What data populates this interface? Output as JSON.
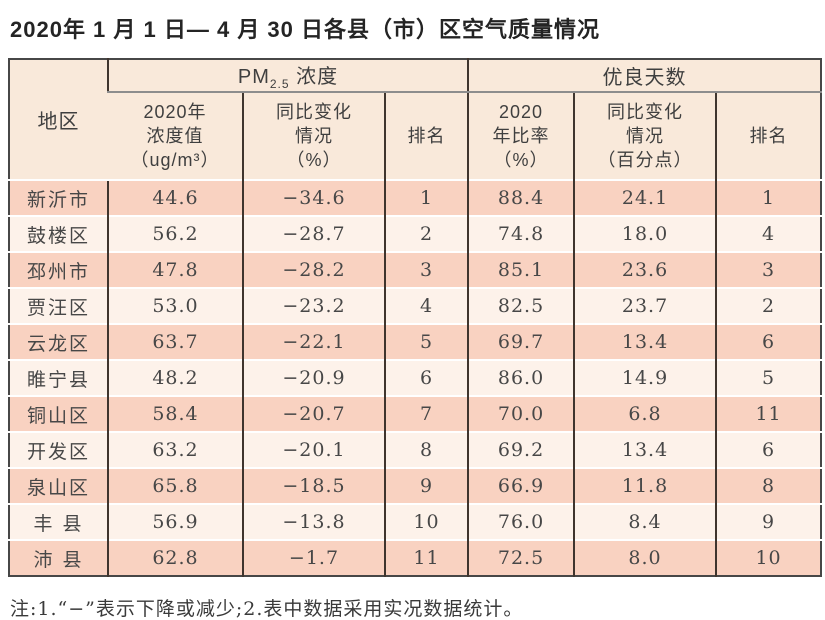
{
  "title": "2020年 1 月 1 日— 4 月 30 日各县（市）区空气质量情况",
  "note": "注:1.“−”表示下降或减少;2.表中数据采用实况数据统计。",
  "colors": {
    "header_bg": "#f9e9da",
    "row_odd_bg": "#f9d2c1",
    "row_even_bg": "#fdf2ea",
    "border_dark": "#40352e",
    "border_outer": "#474747"
  },
  "table": {
    "header": {
      "region": "地区",
      "pm_group": {
        "prefix": "PM",
        "sub": "2.5",
        "suffix": " 浓度"
      },
      "good_days_group": "优良天数",
      "sub_headers": {
        "pm_value": "2020年\n浓度值\n（ug/m³）",
        "pm_change": "同比变化\n情况\n（%）",
        "pm_rank": "排名",
        "gd_ratio": "2020\n年比率\n（%）",
        "gd_change": "同比变化\n情况\n（百分点）",
        "gd_rank": "排名"
      }
    },
    "rows": [
      [
        "新沂市",
        "44.6",
        "−34.6",
        "1",
        "88.4",
        "24.1",
        "1"
      ],
      [
        "鼓楼区",
        "56.2",
        "−28.7",
        "2",
        "74.8",
        "18.0",
        "4"
      ],
      [
        "邳州市",
        "47.8",
        "−28.2",
        "3",
        "85.1",
        "23.6",
        "3"
      ],
      [
        "贾汪区",
        "53.0",
        "−23.2",
        "4",
        "82.5",
        "23.7",
        "2"
      ],
      [
        "云龙区",
        "63.7",
        "−22.1",
        "5",
        "69.7",
        "13.4",
        "6"
      ],
      [
        "睢宁县",
        "48.2",
        "−20.9",
        "6",
        "86.0",
        "14.9",
        "5"
      ],
      [
        "铜山区",
        "58.4",
        "−20.7",
        "7",
        "70.0",
        "6.8",
        "11"
      ],
      [
        "开发区",
        "63.2",
        "−20.1",
        "8",
        "69.2",
        "13.4",
        "6"
      ],
      [
        "泉山区",
        "65.8",
        "−18.5",
        "9",
        "66.9",
        "11.8",
        "8"
      ],
      [
        "丰 县",
        "56.9",
        "−13.8",
        "10",
        "76.0",
        "8.4",
        "9"
      ],
      [
        "沛 县",
        "62.8",
        "−1.7",
        "11",
        "72.5",
        "8.0",
        "10"
      ]
    ]
  }
}
